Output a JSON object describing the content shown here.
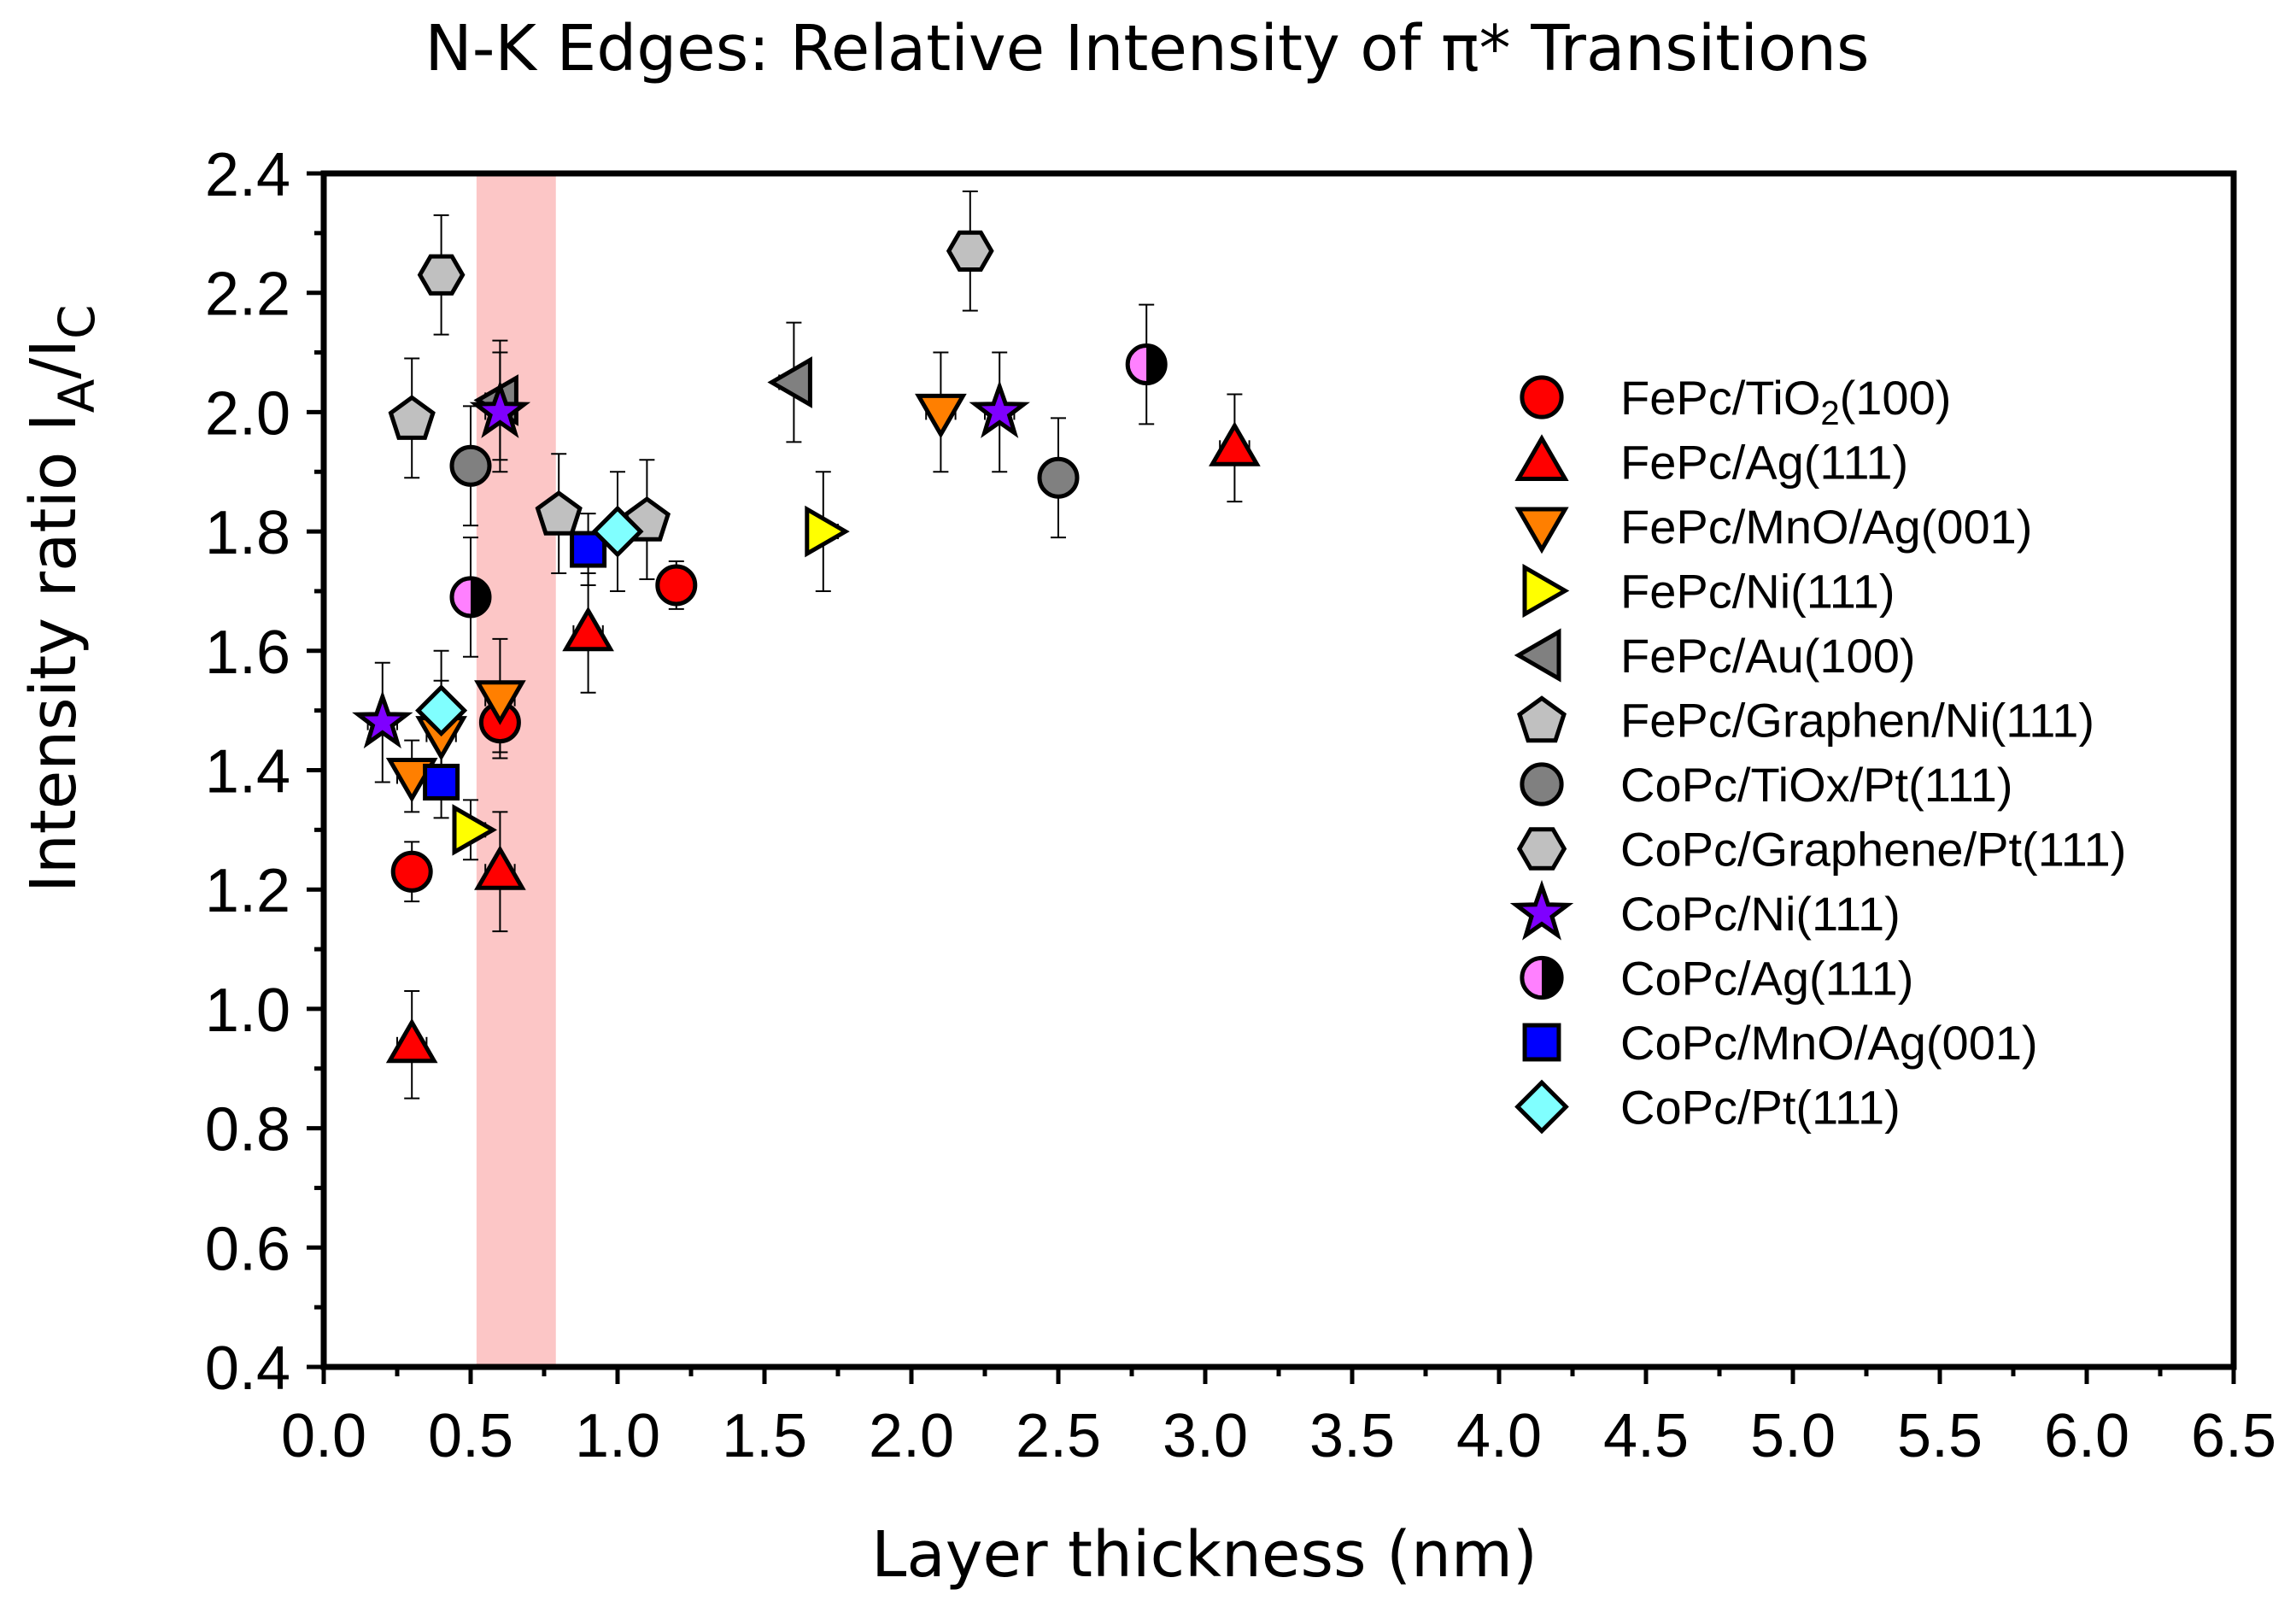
{
  "chart_data": {
    "type": "scatter",
    "title": "N-K Edges: Relative Intensity of π* Transitions",
    "xlabel": "Layer thickness (nm)",
    "ylabel": {
      "main": "Intensity ratio I",
      "sub1": "A",
      "mid": "/I",
      "sub2": "C"
    },
    "xlim": [
      0,
      6.5
    ],
    "ylim": [
      0.4,
      2.4
    ],
    "xticks": [
      "0.0",
      "0.5",
      "1.0",
      "1.5",
      "2.0",
      "2.5",
      "3.0",
      "3.5",
      "4.0",
      "4.5",
      "5.0",
      "5.5",
      "6.0",
      "6.5"
    ],
    "yticks": [
      "0.4",
      "0.6",
      "0.8",
      "1.0",
      "1.2",
      "1.4",
      "1.6",
      "1.8",
      "2.0",
      "2.2",
      "2.4"
    ],
    "shaded_region": {
      "x": [
        0.52,
        0.79
      ],
      "color": "#fcc6c6"
    },
    "legend_position": "right",
    "series": [
      {
        "name": "FePc/TiO",
        "name_sub": "2",
        "name_suffix": "(100)",
        "marker": "circle",
        "color": "#ff0000",
        "points": [
          [
            0.3,
            1.23,
            0.05
          ],
          [
            0.6,
            1.48,
            0.05
          ],
          [
            1.2,
            1.71,
            0.04
          ]
        ]
      },
      {
        "name": "FePc/Ag(111)",
        "marker": "triangle-up",
        "color": "#ff0000",
        "points": [
          [
            0.3,
            0.94,
            0.09
          ],
          [
            0.6,
            1.23,
            0.1
          ],
          [
            0.9,
            1.63,
            0.1
          ],
          [
            3.1,
            1.94,
            0.09
          ]
        ]
      },
      {
        "name": "FePc/MnO/Ag(001)",
        "marker": "triangle-down",
        "color": "#ff7f00",
        "points": [
          [
            0.3,
            1.39,
            0.06
          ],
          [
            0.4,
            1.46,
            0.09
          ],
          [
            0.6,
            1.52,
            0.1
          ],
          [
            2.1,
            2.0,
            0.1
          ]
        ]
      },
      {
        "name": "FePc/Ni(111)",
        "marker": "triangle-right",
        "color": "#ffff00",
        "points": [
          [
            0.5,
            1.3,
            0.05
          ],
          [
            1.7,
            1.8,
            0.1
          ]
        ]
      },
      {
        "name": "FePc/Au(100)",
        "marker": "triangle-left",
        "color": "#808080",
        "points": [
          [
            0.6,
            2.02,
            0.1
          ],
          [
            1.6,
            2.05,
            0.1
          ]
        ]
      },
      {
        "name": "FePc/Graphen/Ni(111)",
        "marker": "pentagon",
        "color": "#c0c0c0",
        "points": [
          [
            0.3,
            1.99,
            0.1
          ],
          [
            0.8,
            1.83,
            0.1
          ],
          [
            1.1,
            1.82,
            0.1
          ]
        ]
      },
      {
        "name": "CoPc/TiOx/Pt(111)",
        "marker": "circle",
        "color": "#808080",
        "points": [
          [
            0.5,
            1.91,
            0.1
          ],
          [
            2.5,
            1.89,
            0.1
          ]
        ]
      },
      {
        "name": "CoPc/Graphene/Pt(111)",
        "marker": "hexagon",
        "color": "#c0c0c0",
        "points": [
          [
            0.4,
            2.23,
            0.1
          ],
          [
            2.2,
            2.27,
            0.1
          ]
        ]
      },
      {
        "name": "CoPc/Ni(111)",
        "marker": "star",
        "color": "#7f00ff",
        "points": [
          [
            0.2,
            1.48,
            0.1
          ],
          [
            0.6,
            2.0,
            0.1
          ],
          [
            2.3,
            2.0,
            0.1
          ]
        ]
      },
      {
        "name": "CoPc/Ag(111)",
        "marker": "half-circle",
        "color": "#ff80ff",
        "points": [
          [
            0.5,
            1.69,
            0.1
          ],
          [
            2.8,
            2.08,
            0.1
          ]
        ]
      },
      {
        "name": "CoPc/MnO/Ag(001)",
        "marker": "square",
        "color": "#0000ff",
        "points": [
          [
            0.4,
            1.38,
            0.06
          ],
          [
            0.9,
            1.77,
            0.06
          ]
        ]
      },
      {
        "name": "CoPc/Pt(111)",
        "marker": "diamond",
        "color": "#80ffff",
        "points": [
          [
            0.4,
            1.5,
            0.1
          ],
          [
            1.0,
            1.8,
            0.1
          ]
        ]
      }
    ]
  }
}
